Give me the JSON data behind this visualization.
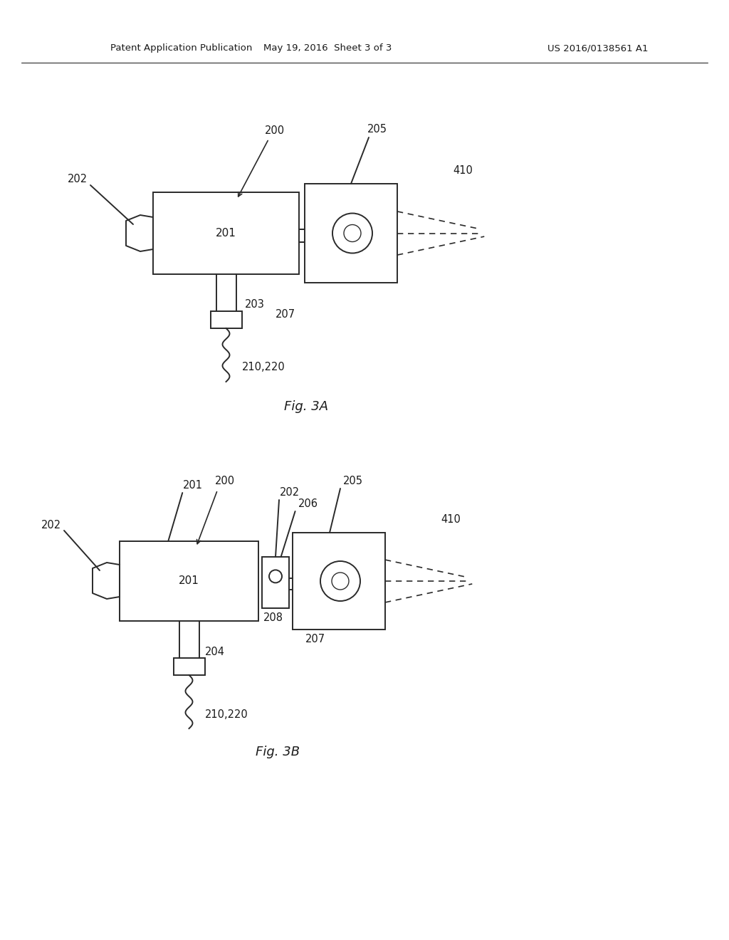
{
  "bg_color": "#ffffff",
  "line_color": "#2a2a2a",
  "text_color": "#1a1a1a",
  "header_left": "Patent Application Publication",
  "header_mid": "May 19, 2016  Sheet 3 of 3",
  "header_right": "US 2016/0138561 A1",
  "fig3a_label": "Fig. 3A",
  "fig3b_label": "Fig. 3B"
}
